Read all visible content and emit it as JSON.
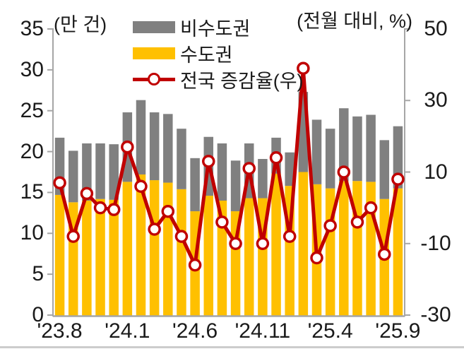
{
  "chart_data": {
    "type": "bar",
    "subtype": "stacked-bars-with-line-overlay",
    "title": "",
    "left_axis": {
      "unit_label": "(만 건)",
      "ticks": [
        35,
        30,
        25,
        20,
        15,
        10,
        5,
        0
      ],
      "range": [
        0,
        35
      ]
    },
    "right_axis": {
      "unit_label": "(전월 대비, %)",
      "ticks": [
        50,
        30,
        10,
        -10,
        -30
      ],
      "range": [
        -30,
        50
      ]
    },
    "x_axis": {
      "tick_labels": [
        "'23.8",
        "'24.1",
        "'24.6",
        "'24.11",
        "'25.4",
        "'25.9"
      ],
      "tick_label_indices": [
        0,
        5,
        10,
        15,
        20,
        25
      ]
    },
    "categories": [
      "'23.8",
      "'23.9",
      "'23.10",
      "'23.11",
      "'23.12",
      "'24.1",
      "'24.2",
      "'24.3",
      "'24.4",
      "'24.5",
      "'24.6",
      "'24.7",
      "'24.8",
      "'24.9",
      "'24.10",
      "'24.11",
      "'24.12",
      "'25.1",
      "'25.2",
      "'25.3",
      "'25.4",
      "'25.5",
      "'25.6",
      "'25.7",
      "'25.8",
      "'25.9"
    ],
    "series": [
      {
        "name": "수도권",
        "type": "bar",
        "axis": "left",
        "color": "#FFC000",
        "values": [
          14.7,
          13.8,
          14.0,
          14.2,
          14.1,
          16.3,
          17.2,
          16.5,
          16.2,
          15.4,
          12.7,
          14.6,
          14.0,
          12.7,
          14.3,
          14.3,
          17.3,
          15.8,
          17.5,
          16.0,
          15.5,
          16.4,
          16.4,
          16.3,
          14.2,
          15.5
        ]
      },
      {
        "name": "비수도권",
        "type": "bar",
        "axis": "left",
        "color": "#808080",
        "values": [
          7.0,
          6.3,
          7.0,
          6.8,
          6.8,
          8.5,
          9.1,
          8.3,
          8.4,
          7.4,
          6.5,
          7.2,
          7.0,
          6.2,
          6.7,
          4.8,
          4.4,
          4.1,
          9.8,
          7.9,
          7.3,
          8.9,
          7.9,
          8.2,
          7.2,
          7.6
        ]
      },
      {
        "name": "전국 증감율(우)",
        "type": "line",
        "axis": "right",
        "color": "#C00000",
        "marker": "open-circle",
        "values": [
          7,
          -8,
          4,
          0,
          -0.5,
          17,
          6,
          -6,
          -1,
          -8,
          -16,
          13,
          -4,
          -10,
          11,
          -10,
          14,
          -8,
          39,
          -14,
          -5,
          10,
          -4,
          0,
          -13,
          8
        ]
      }
    ],
    "legend": {
      "position": "top-center",
      "items": [
        "비수도권",
        "수도권",
        "전국 증감율(우)"
      ]
    },
    "grid": false
  },
  "colors": {
    "bar_capital": "#FFC000",
    "bar_noncapital": "#808080",
    "line": "#C00000",
    "marker_fill": "#ffffff",
    "axis": "#a6a6a6",
    "text": "#1a1a1a",
    "bottom_border": "#cccccc"
  }
}
